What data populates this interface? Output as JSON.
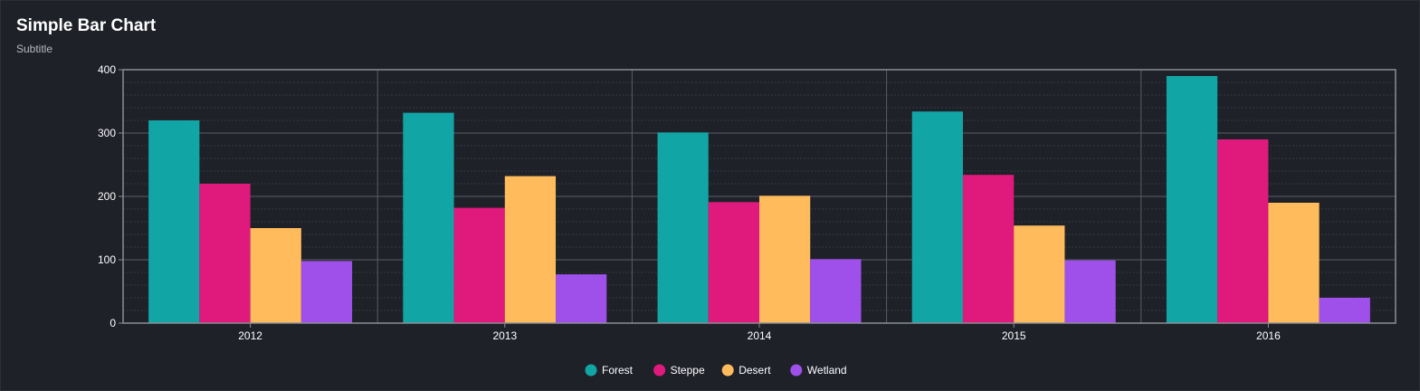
{
  "header": {
    "title": "Simple Bar Chart",
    "subtitle": "Subtitle"
  },
  "colors": {
    "background": "#1f2129",
    "grid_major": "#5a5d66",
    "grid_minor": "#363943",
    "axis": "#8a8d94",
    "text": "#ffffff"
  },
  "chart_data": {
    "type": "bar",
    "title": "Simple Bar Chart",
    "subtitle": "Subtitle",
    "xlabel": "",
    "ylabel": "",
    "categories": [
      "2012",
      "2013",
      "2014",
      "2015",
      "2016"
    ],
    "ylim": [
      0,
      400
    ],
    "yticks": [
      0,
      100,
      200,
      300,
      400
    ],
    "grid": true,
    "legend_position": "bottom",
    "series": [
      {
        "name": "Forest",
        "color": "#12a5a6",
        "values": [
          320,
          332,
          301,
          334,
          390
        ]
      },
      {
        "name": "Steppe",
        "color": "#e0197d",
        "values": [
          220,
          182,
          191,
          234,
          290
        ]
      },
      {
        "name": "Desert",
        "color": "#ffbb5c",
        "values": [
          150,
          232,
          201,
          154,
          190
        ]
      },
      {
        "name": "Wetland",
        "color": "#9f50ea",
        "values": [
          98,
          77,
          101,
          99,
          40
        ]
      }
    ]
  }
}
